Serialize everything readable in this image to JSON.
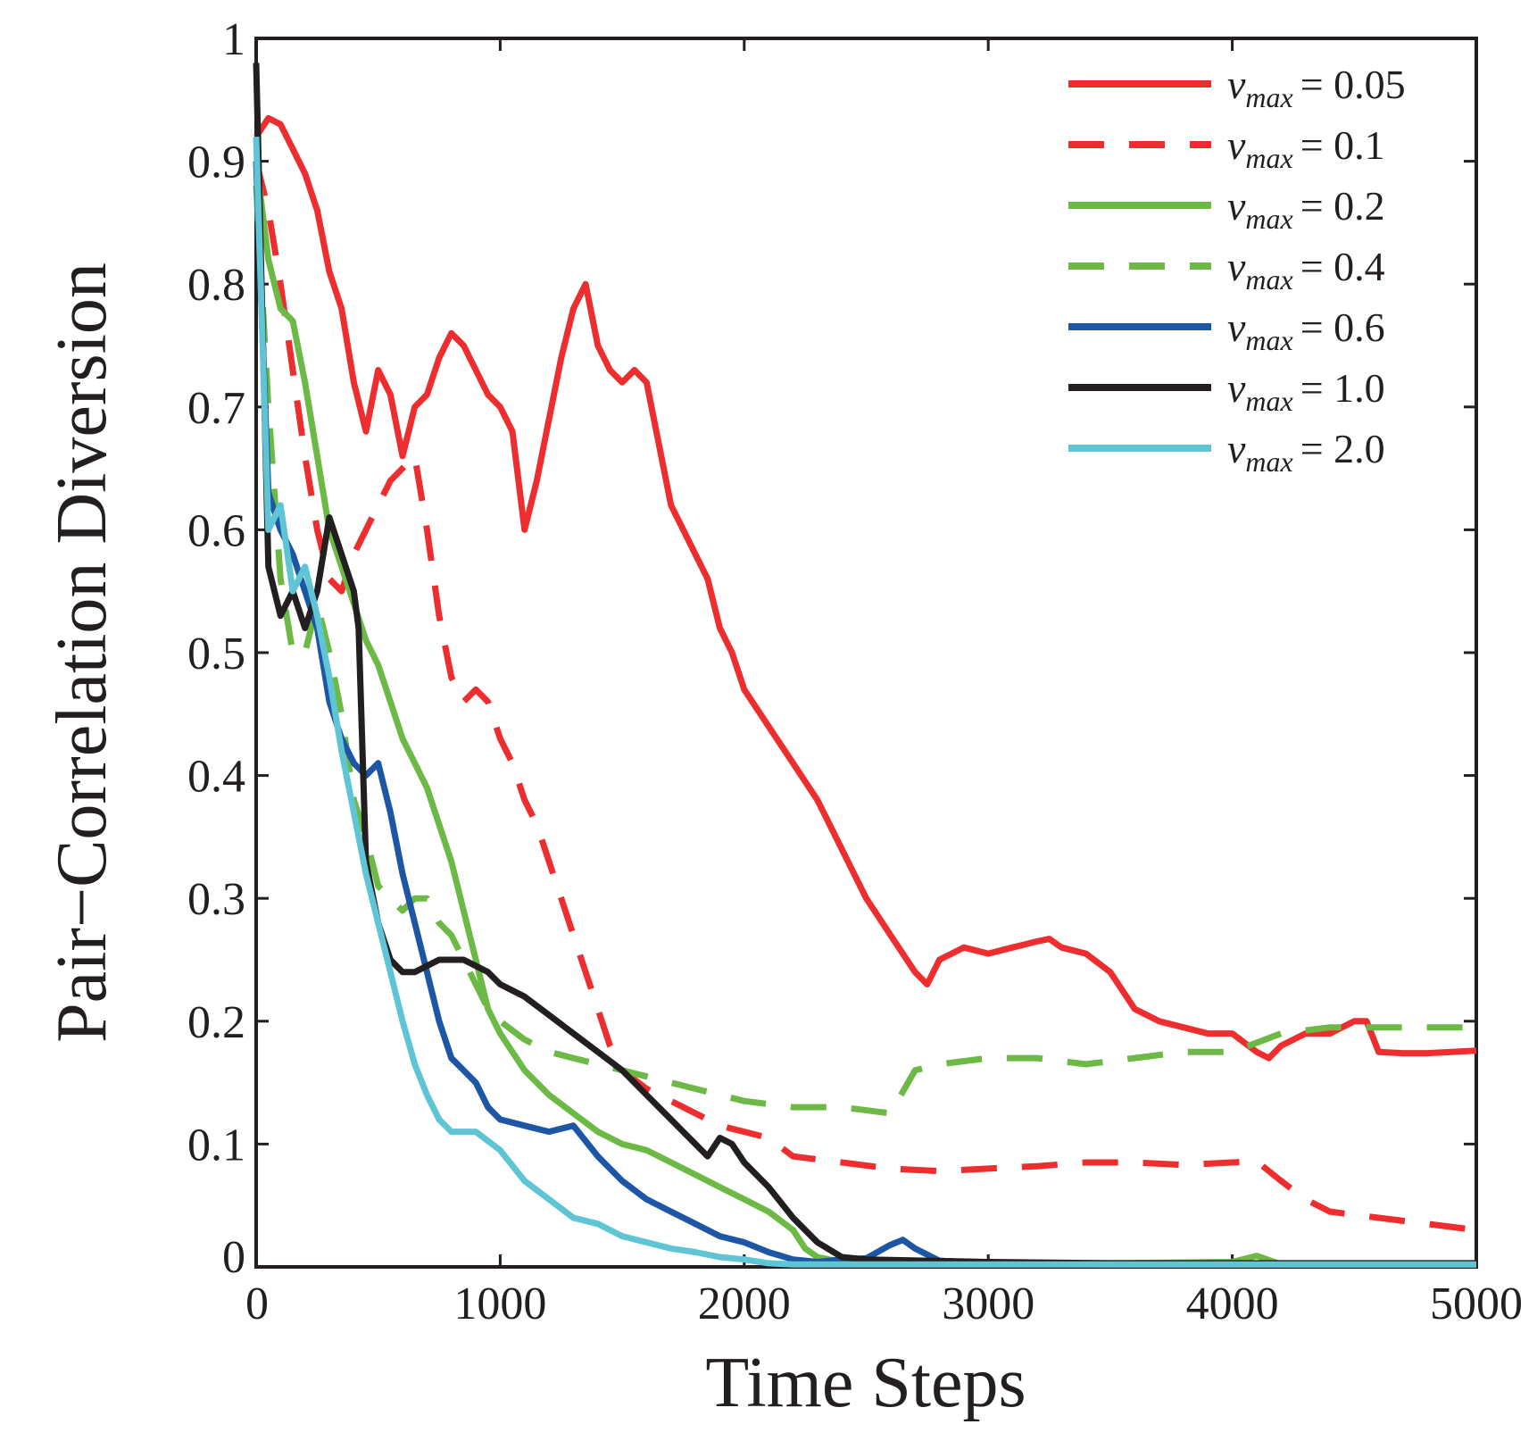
{
  "chart_data": {
    "type": "line",
    "title": "",
    "xlabel": "Time Steps",
    "ylabel": "Pair−Correlation Diversion",
    "xlim": [
      0,
      5000
    ],
    "ylim": [
      0,
      1
    ],
    "x_ticks": [
      0,
      1000,
      2000,
      3000,
      4000,
      5000
    ],
    "x_tick_labels": [
      "0",
      "1000",
      "2000",
      "3000",
      "4000",
      "5000"
    ],
    "y_ticks": [
      0,
      0.1,
      0.2,
      0.3,
      0.4,
      0.5,
      0.6,
      0.7,
      0.8,
      0.9,
      1
    ],
    "y_tick_labels": [
      "0",
      "0.1",
      "0.2",
      "0.3",
      "0.4",
      "0.5",
      "0.6",
      "0.7",
      "0.8",
      "0.9",
      "1"
    ],
    "grid": false,
    "legend_position": "top-right",
    "series": [
      {
        "name": "v_max = 0.05",
        "legend_main": "v",
        "legend_sub": "max",
        "legend_value": "= 0.05",
        "color": "#ee2d2f",
        "dash": "solid",
        "x": [
          0,
          50,
          100,
          150,
          200,
          250,
          300,
          350,
          400,
          450,
          500,
          550,
          600,
          650,
          700,
          750,
          800,
          850,
          900,
          950,
          1000,
          1050,
          1100,
          1150,
          1200,
          1250,
          1300,
          1350,
          1400,
          1450,
          1500,
          1550,
          1600,
          1650,
          1700,
          1750,
          1800,
          1850,
          1900,
          1950,
          2000,
          2100,
          2200,
          2300,
          2400,
          2500,
          2600,
          2700,
          2750,
          2800,
          2900,
          3000,
          3100,
          3200,
          3250,
          3300,
          3400,
          3500,
          3600,
          3700,
          3800,
          3900,
          4000,
          4100,
          4150,
          4200,
          4300,
          4400,
          4500,
          4550,
          4600,
          4700,
          4800,
          4900,
          5000
        ],
        "y": [
          0.92,
          0.935,
          0.93,
          0.91,
          0.89,
          0.86,
          0.81,
          0.78,
          0.72,
          0.68,
          0.73,
          0.71,
          0.66,
          0.7,
          0.71,
          0.74,
          0.76,
          0.75,
          0.73,
          0.71,
          0.7,
          0.68,
          0.6,
          0.64,
          0.69,
          0.74,
          0.78,
          0.8,
          0.75,
          0.73,
          0.72,
          0.73,
          0.72,
          0.67,
          0.62,
          0.6,
          0.58,
          0.56,
          0.52,
          0.5,
          0.47,
          0.44,
          0.41,
          0.38,
          0.34,
          0.3,
          0.27,
          0.24,
          0.23,
          0.25,
          0.26,
          0.255,
          0.26,
          0.265,
          0.267,
          0.26,
          0.255,
          0.24,
          0.21,
          0.2,
          0.195,
          0.19,
          0.19,
          0.175,
          0.17,
          0.18,
          0.19,
          0.19,
          0.2,
          0.2,
          0.175,
          0.174,
          0.174,
          0.175,
          0.176
        ]
      },
      {
        "name": "v_max = 0.1",
        "legend_main": "v",
        "legend_sub": "max",
        "legend_value": "= 0.1",
        "color": "#ee2d2f",
        "dash": "dashed",
        "x": [
          0,
          50,
          100,
          150,
          200,
          250,
          300,
          350,
          400,
          450,
          500,
          550,
          600,
          650,
          700,
          750,
          800,
          850,
          900,
          950,
          1000,
          1050,
          1100,
          1150,
          1200,
          1250,
          1300,
          1350,
          1400,
          1450,
          1500,
          1600,
          1700,
          1800,
          1900,
          2000,
          2100,
          2200,
          2400,
          2600,
          2800,
          3000,
          3200,
          3400,
          3600,
          3800,
          4000,
          4100,
          4200,
          4300,
          4400,
          4600,
          4800,
          5000
        ],
        "y": [
          0.9,
          0.86,
          0.8,
          0.73,
          0.66,
          0.6,
          0.56,
          0.55,
          0.58,
          0.6,
          0.62,
          0.64,
          0.65,
          0.66,
          0.6,
          0.53,
          0.48,
          0.46,
          0.47,
          0.46,
          0.43,
          0.41,
          0.38,
          0.36,
          0.33,
          0.3,
          0.27,
          0.24,
          0.21,
          0.18,
          0.16,
          0.145,
          0.135,
          0.125,
          0.115,
          0.11,
          0.105,
          0.09,
          0.085,
          0.08,
          0.078,
          0.08,
          0.082,
          0.085,
          0.085,
          0.083,
          0.085,
          0.086,
          0.07,
          0.055,
          0.045,
          0.04,
          0.035,
          0.03
        ]
      },
      {
        "name": "v_max = 0.2",
        "legend_main": "v",
        "legend_sub": "max",
        "legend_value": "= 0.2",
        "color": "#6cba45",
        "dash": "solid",
        "x": [
          0,
          50,
          100,
          150,
          200,
          250,
          300,
          350,
          400,
          450,
          500,
          550,
          600,
          650,
          700,
          750,
          800,
          850,
          900,
          950,
          1000,
          1100,
          1200,
          1300,
          1400,
          1500,
          1600,
          1700,
          1800,
          1900,
          2000,
          2100,
          2200,
          2250,
          2300,
          2400,
          2500,
          3000,
          3500,
          4000,
          4100,
          4200,
          5000
        ],
        "y": [
          0.9,
          0.82,
          0.78,
          0.77,
          0.72,
          0.66,
          0.6,
          0.57,
          0.54,
          0.51,
          0.49,
          0.46,
          0.43,
          0.41,
          0.39,
          0.36,
          0.33,
          0.29,
          0.25,
          0.21,
          0.19,
          0.16,
          0.14,
          0.125,
          0.11,
          0.1,
          0.095,
          0.085,
          0.075,
          0.065,
          0.055,
          0.045,
          0.03,
          0.015,
          0.008,
          0.004,
          0.003,
          0.003,
          0.003,
          0.004,
          0.009,
          0.002,
          0.002
        ]
      },
      {
        "name": "v_max = 0.4",
        "legend_main": "v",
        "legend_sub": "max",
        "legend_value": "= 0.4",
        "color": "#6cba45",
        "dash": "dashed",
        "x": [
          0,
          50,
          100,
          150,
          200,
          250,
          300,
          350,
          400,
          450,
          500,
          550,
          600,
          650,
          700,
          750,
          800,
          850,
          900,
          950,
          1000,
          1100,
          1200,
          1300,
          1400,
          1500,
          1600,
          1700,
          1800,
          1900,
          2000,
          2200,
          2400,
          2600,
          2700,
          2800,
          3000,
          3200,
          3400,
          3600,
          3800,
          4000,
          4200,
          4400,
          4600,
          4800,
          5000
        ],
        "y": [
          0.88,
          0.7,
          0.56,
          0.5,
          0.5,
          0.54,
          0.5,
          0.45,
          0.38,
          0.35,
          0.31,
          0.3,
          0.29,
          0.3,
          0.3,
          0.28,
          0.27,
          0.25,
          0.23,
          0.21,
          0.2,
          0.185,
          0.175,
          0.17,
          0.165,
          0.16,
          0.155,
          0.15,
          0.145,
          0.14,
          0.135,
          0.13,
          0.13,
          0.125,
          0.16,
          0.165,
          0.17,
          0.17,
          0.165,
          0.17,
          0.175,
          0.175,
          0.19,
          0.195,
          0.195,
          0.195,
          0.195
        ]
      },
      {
        "name": "v_max = 0.6",
        "legend_main": "v",
        "legend_sub": "max",
        "legend_value": "= 0.6",
        "color": "#1d56a5",
        "dash": "solid",
        "x": [
          0,
          50,
          100,
          150,
          200,
          250,
          300,
          350,
          400,
          450,
          500,
          550,
          600,
          650,
          700,
          750,
          800,
          850,
          900,
          950,
          1000,
          1100,
          1200,
          1300,
          1400,
          1500,
          1600,
          1700,
          1800,
          1900,
          2000,
          2100,
          2200,
          2300,
          2400,
          2500,
          2600,
          2650,
          2700,
          2800,
          3000,
          3500,
          4000,
          5000
        ],
        "y": [
          0.9,
          0.63,
          0.6,
          0.58,
          0.55,
          0.52,
          0.46,
          0.43,
          0.41,
          0.4,
          0.41,
          0.37,
          0.32,
          0.28,
          0.24,
          0.2,
          0.17,
          0.16,
          0.15,
          0.13,
          0.12,
          0.115,
          0.11,
          0.115,
          0.09,
          0.07,
          0.055,
          0.045,
          0.035,
          0.025,
          0.02,
          0.012,
          0.006,
          0.004,
          0.006,
          0.007,
          0.018,
          0.022,
          0.015,
          0.005,
          0.003,
          0.002,
          0.002,
          0.002
        ]
      },
      {
        "name": "v_max = 1.0",
        "legend_main": "v",
        "legend_sub": "max",
        "legend_value": "= 1.0",
        "color": "#231f20",
        "dash": "solid",
        "x": [
          0,
          50,
          100,
          150,
          200,
          250,
          300,
          350,
          400,
          420,
          450,
          500,
          550,
          600,
          650,
          700,
          750,
          800,
          850,
          900,
          950,
          1000,
          1100,
          1200,
          1300,
          1400,
          1500,
          1600,
          1700,
          1800,
          1850,
          1900,
          1950,
          2000,
          2100,
          2200,
          2300,
          2400,
          2500,
          3000,
          3500,
          4000,
          5000
        ],
        "y": [
          0.98,
          0.57,
          0.53,
          0.55,
          0.52,
          0.55,
          0.61,
          0.58,
          0.55,
          0.52,
          0.33,
          0.28,
          0.25,
          0.24,
          0.24,
          0.245,
          0.25,
          0.25,
          0.25,
          0.245,
          0.24,
          0.23,
          0.22,
          0.205,
          0.19,
          0.175,
          0.16,
          0.14,
          0.12,
          0.1,
          0.09,
          0.105,
          0.1,
          0.085,
          0.065,
          0.04,
          0.02,
          0.008,
          0.006,
          0.004,
          0.003,
          0.003,
          0.003
        ]
      },
      {
        "name": "v_max = 2.0",
        "legend_main": "v",
        "legend_sub": "max",
        "legend_value": "= 2.0",
        "color": "#5fc5d4",
        "dash": "solid",
        "x": [
          0,
          50,
          100,
          150,
          200,
          250,
          300,
          350,
          400,
          450,
          500,
          550,
          600,
          650,
          700,
          750,
          800,
          900,
          1000,
          1100,
          1200,
          1300,
          1400,
          1500,
          1600,
          1700,
          1800,
          1900,
          2000,
          2100,
          2200,
          2500,
          3000,
          3500,
          4000,
          5000
        ],
        "y": [
          0.92,
          0.6,
          0.62,
          0.55,
          0.57,
          0.53,
          0.48,
          0.42,
          0.37,
          0.32,
          0.28,
          0.24,
          0.2,
          0.165,
          0.14,
          0.12,
          0.11,
          0.11,
          0.095,
          0.07,
          0.055,
          0.04,
          0.035,
          0.025,
          0.02,
          0.015,
          0.012,
          0.008,
          0.006,
          0.003,
          0.002,
          0.002,
          0.002,
          0.002,
          0.002,
          0.002
        ]
      }
    ]
  }
}
